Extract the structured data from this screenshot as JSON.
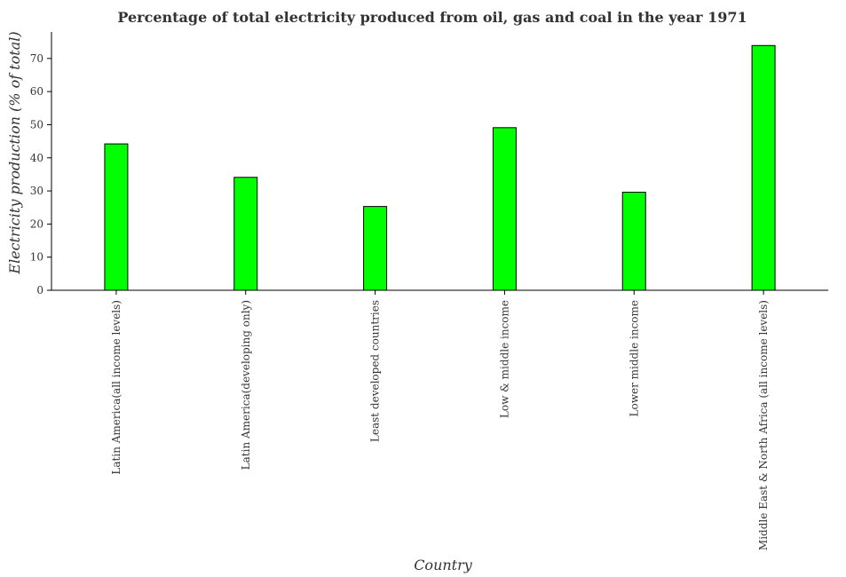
{
  "chart_data": {
    "type": "bar",
    "title": "Percentage of total electricity produced from oil, gas and coal in the year 1971",
    "xlabel": "Country",
    "ylabel": "Electricity production (% of total)",
    "categories": [
      "Latin America(all income levels)",
      "Latin America(developing only)",
      "Least developed countries",
      "Low & middle income",
      "Lower middle income",
      "Middle East & North Africa (all income levels)"
    ],
    "values": [
      44.2,
      34.1,
      25.3,
      49.1,
      29.6,
      73.9
    ],
    "ylim": [
      0,
      78
    ],
    "yticks": [
      "0",
      "10",
      "20",
      "30",
      "40",
      "50",
      "60",
      "70"
    ],
    "bar_color": "#00ff00",
    "bar_edge_color": "#000000",
    "grid": false,
    "legend": "none"
  }
}
